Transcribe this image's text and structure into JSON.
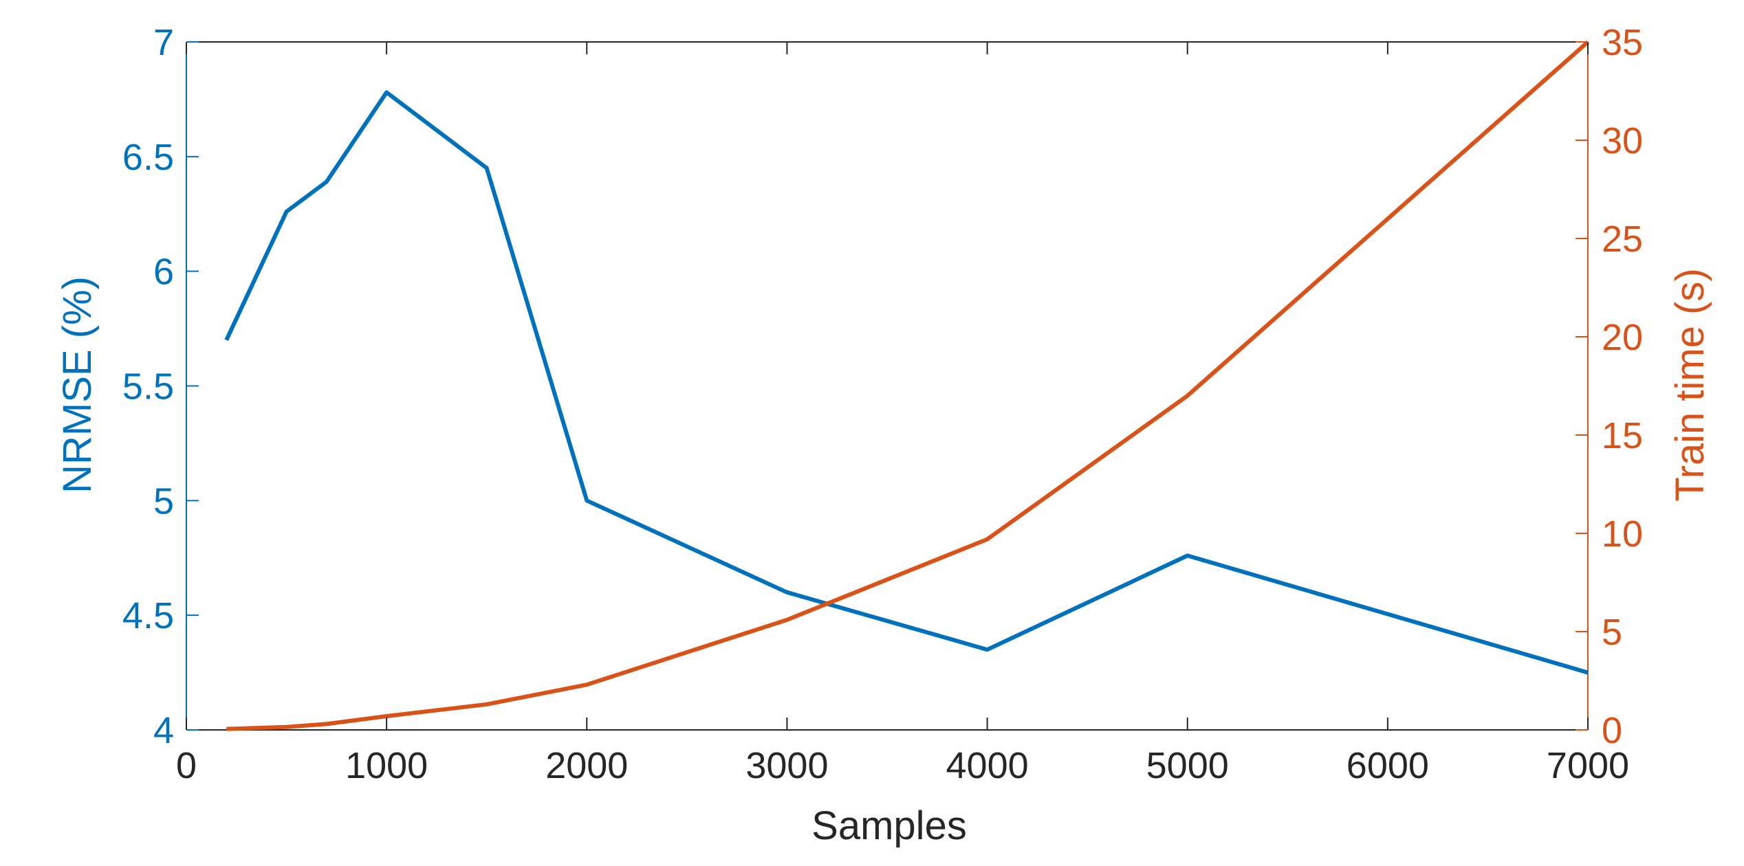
{
  "chart_data": {
    "type": "line",
    "x": [
      200,
      500,
      700,
      1000,
      1500,
      2000,
      3000,
      4000,
      5000,
      7000
    ],
    "xlabel": "Samples",
    "xlim": [
      0,
      7000
    ],
    "xticks": [
      0,
      1000,
      2000,
      3000,
      4000,
      5000,
      6000,
      7000
    ],
    "xtick_labels": [
      "0",
      "1000",
      "2000",
      "3000",
      "4000",
      "5000",
      "6000",
      "7000"
    ],
    "grid": false,
    "legend": "none",
    "series": [
      {
        "axis": "left",
        "color": "#0072BD",
        "values": [
          5.7,
          6.26,
          6.39,
          6.78,
          6.45,
          5.0,
          4.6,
          4.35,
          4.76,
          4.25
        ]
      },
      {
        "axis": "right",
        "color": "#D95319",
        "values": [
          0.05,
          0.15,
          0.3,
          0.7,
          1.3,
          2.3,
          5.6,
          9.7,
          17.0,
          35.0
        ]
      }
    ],
    "y_left": {
      "label": "NRMSE (%)",
      "lim": [
        4,
        7
      ],
      "ticks": [
        4,
        4.5,
        5,
        5.5,
        6,
        6.5,
        7
      ],
      "tick_labels": [
        "4",
        "4.5",
        "5",
        "5.5",
        "6",
        "6.5",
        "7"
      ],
      "color": "#0072BD"
    },
    "y_right": {
      "label": "Train time (s)",
      "lim": [
        0,
        35
      ],
      "ticks": [
        0,
        5,
        10,
        15,
        20,
        25,
        30,
        35
      ],
      "tick_labels": [
        "0",
        "5",
        "10",
        "15",
        "20",
        "25",
        "30",
        "35"
      ],
      "color": "#D95319"
    },
    "axes_color": "#262626"
  }
}
